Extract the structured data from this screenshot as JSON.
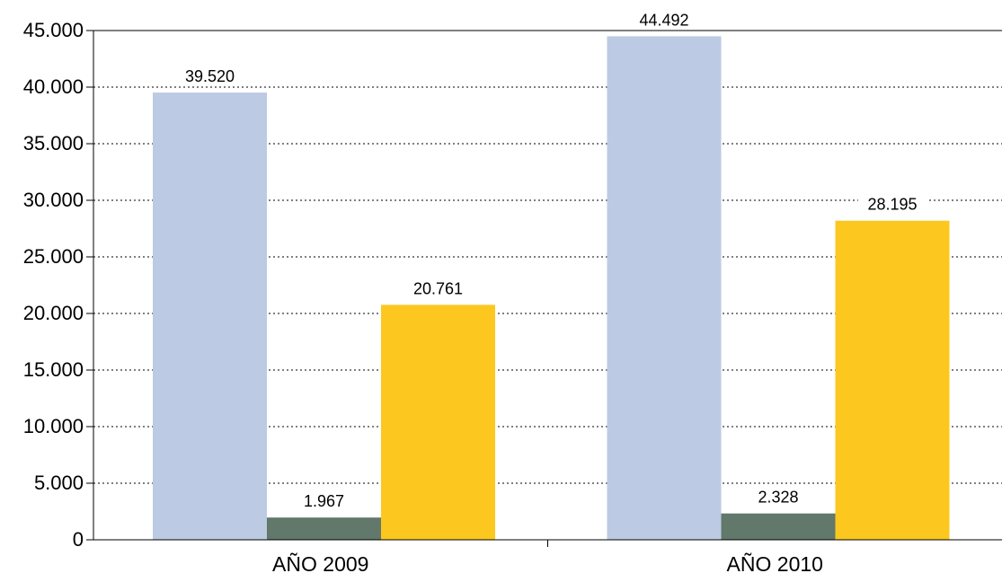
{
  "chart_data": {
    "type": "bar",
    "categories": [
      "AÑO 2009",
      "AÑO 2010"
    ],
    "series": [
      {
        "values": [
          39520,
          44492
        ],
        "labels": [
          "39.520",
          "44.492"
        ],
        "color": "#bccae4"
      },
      {
        "values": [
          1967,
          2328
        ],
        "labels": [
          "1.967",
          "2.328"
        ],
        "color": "#61786a"
      },
      {
        "values": [
          20761,
          28195
        ],
        "labels": [
          "20.761",
          "28.195"
        ],
        "color": "#fcc820"
      }
    ],
    "y_ticks": [
      0,
      5000,
      10000,
      15000,
      20000,
      25000,
      30000,
      35000,
      40000,
      45000
    ],
    "y_tick_labels": [
      "0",
      "5.000",
      "10.000",
      "15.000",
      "20.000",
      "25.000",
      "30.000",
      "35.000",
      "40.000",
      "45.000"
    ],
    "ylim": [
      0,
      45000
    ],
    "title": "",
    "xlabel": "",
    "ylabel": "",
    "grid": true,
    "grid_style": "dotted",
    "legend": false
  }
}
